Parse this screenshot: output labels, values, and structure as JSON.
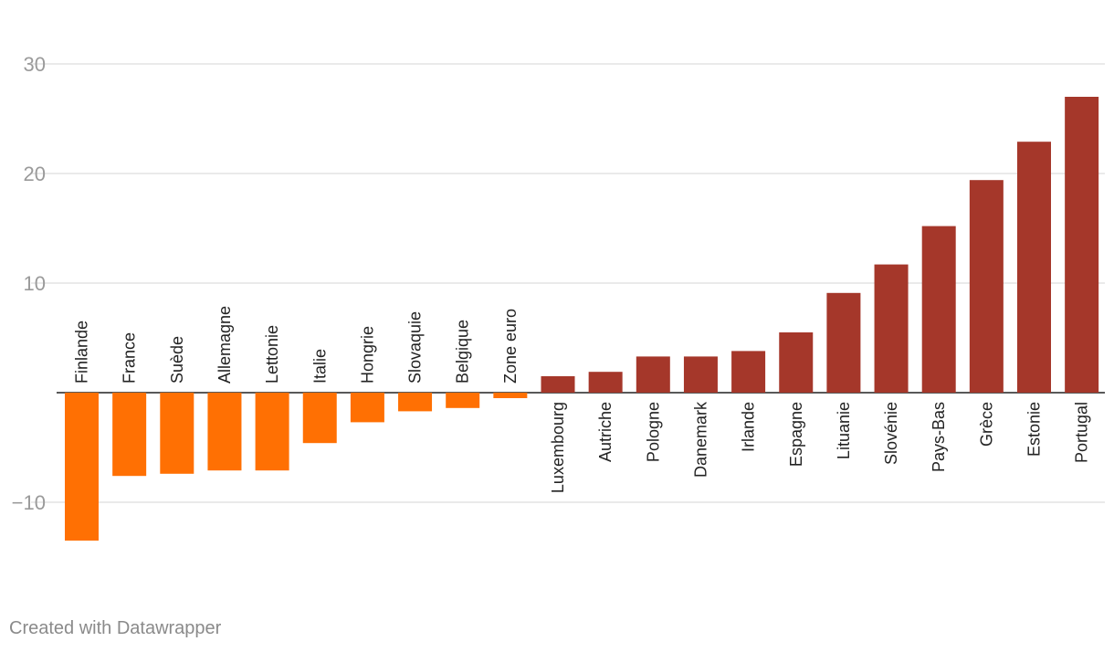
{
  "chart_data": {
    "type": "bar",
    "title": "",
    "xlabel": "",
    "ylabel": "",
    "ylim": [
      -15,
      33
    ],
    "yticks": [
      30,
      20,
      10,
      -10
    ],
    "ytick_labels": [
      "30",
      "20",
      "10",
      "−10"
    ],
    "grid": true,
    "categories": [
      "Finlande",
      "France",
      "Suède",
      "Allemagne",
      "Lettonie",
      "Italie",
      "Hongrie",
      "Slovaquie",
      "Belgique",
      "Zone euro",
      "Luxembourg",
      "Autriche",
      "Pologne",
      "Danemark",
      "Irlande",
      "Espagne",
      "Lituanie",
      "Slovénie",
      "Pays-Bas",
      "Grèce",
      "Estonie",
      "Portugal"
    ],
    "values": [
      -13.5,
      -7.6,
      -7.4,
      -7.1,
      -7.1,
      -4.6,
      -2.7,
      -1.7,
      -1.4,
      -0.5,
      1.5,
      1.9,
      3.3,
      3.3,
      3.8,
      5.5,
      9.1,
      11.7,
      15.2,
      19.4,
      22.9,
      27.0
    ],
    "colors": {
      "negative": "#ff7003",
      "positive": "#a5372a"
    }
  },
  "footer": {
    "credit": "Created with Datawrapper"
  }
}
